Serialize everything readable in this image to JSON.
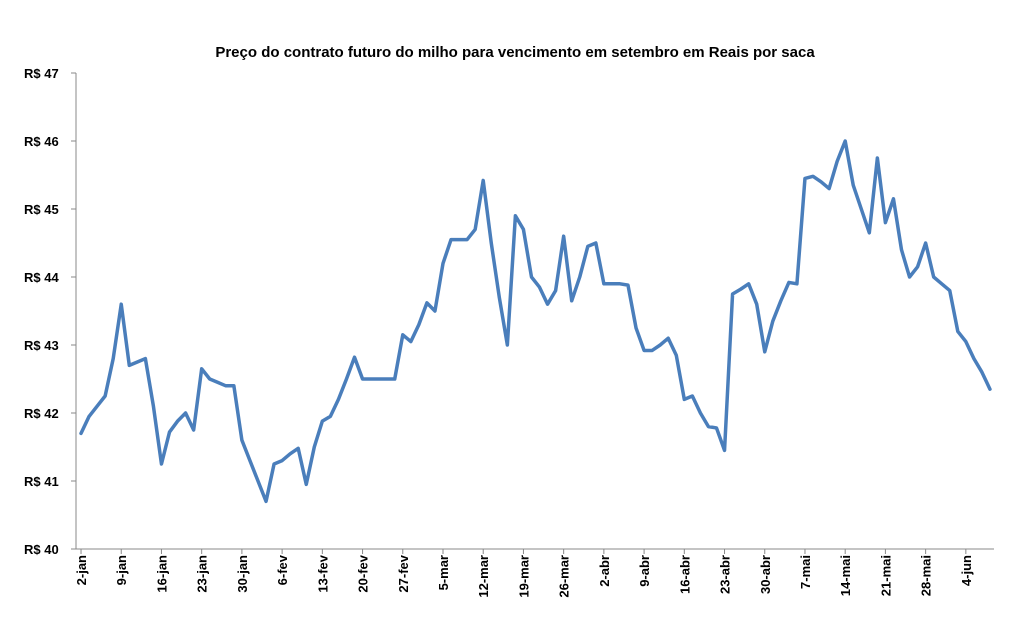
{
  "chart_data": {
    "type": "line",
    "title": "Preço do contrato futuro do milho para vencimento em setembro em Reais por saca",
    "color": "#4a7ebb",
    "grid": false,
    "categories": [
      "2-jan",
      null,
      null,
      null,
      null,
      "9-jan",
      null,
      null,
      null,
      null,
      "16-jan",
      null,
      null,
      null,
      null,
      "23-jan",
      null,
      null,
      null,
      null,
      "30-jan",
      null,
      null,
      null,
      null,
      "6-fev",
      null,
      null,
      null,
      null,
      "13-fev",
      null,
      null,
      null,
      null,
      "20-fev",
      null,
      null,
      null,
      null,
      "27-fev",
      null,
      null,
      null,
      null,
      "5-mar",
      null,
      null,
      null,
      null,
      "12-mar",
      null,
      null,
      null,
      null,
      "19-mar",
      null,
      null,
      null,
      null,
      "26-mar",
      null,
      null,
      null,
      null,
      "2-abr",
      null,
      null,
      null,
      null,
      "9-abr",
      null,
      null,
      null,
      null,
      "16-abr",
      null,
      null,
      null,
      null,
      "23-abr",
      null,
      null,
      null,
      null,
      "30-abr",
      null,
      null,
      null,
      null,
      "7-mai",
      null,
      null,
      null,
      null,
      "14-mai",
      null,
      null,
      null,
      null,
      "21-mai",
      null,
      null,
      null,
      null,
      "28-mai",
      null,
      null,
      null,
      null,
      "4-jun",
      null,
      null,
      null
    ],
    "values": [
      41.7,
      41.95,
      42.1,
      42.25,
      42.8,
      43.6,
      42.7,
      42.75,
      42.8,
      42.1,
      41.25,
      41.72,
      41.88,
      42.0,
      41.75,
      42.65,
      42.5,
      42.45,
      42.4,
      42.4,
      41.6,
      41.3,
      41.0,
      40.7,
      41.25,
      41.3,
      41.4,
      41.48,
      40.95,
      41.5,
      41.88,
      41.95,
      42.2,
      42.5,
      42.82,
      42.5,
      42.5,
      42.5,
      42.5,
      42.5,
      43.15,
      43.05,
      43.3,
      43.62,
      43.5,
      44.2,
      44.55,
      44.55,
      44.55,
      44.7,
      45.42,
      44.5,
      43.7,
      43.0,
      44.9,
      44.7,
      44.0,
      43.85,
      43.6,
      43.8,
      44.6,
      43.65,
      44.0,
      44.45,
      44.5,
      43.9,
      43.9,
      43.9,
      43.88,
      43.25,
      42.92,
      42.92,
      43.0,
      43.1,
      42.85,
      42.2,
      42.25,
      42.0,
      41.8,
      41.78,
      41.45,
      43.75,
      43.82,
      43.9,
      43.6,
      42.9,
      43.35,
      43.65,
      43.92,
      43.9,
      45.45,
      45.48,
      45.4,
      45.3,
      45.7,
      46.0,
      45.35,
      45.0,
      44.65,
      45.75,
      44.8,
      45.15,
      44.4,
      44.0,
      44.15,
      44.5,
      44.0,
      43.9,
      43.8,
      43.2,
      43.05,
      42.8,
      42.6,
      42.35
    ],
    "ylim": [
      40,
      47
    ],
    "yticks": [
      {
        "value": 40,
        "label": "R$ 40"
      },
      {
        "value": 41,
        "label": "R$ 41"
      },
      {
        "value": 42,
        "label": "R$ 42"
      },
      {
        "value": 43,
        "label": "R$ 43"
      },
      {
        "value": 44,
        "label": "R$ 44"
      },
      {
        "value": 45,
        "label": "R$ 45"
      },
      {
        "value": 46,
        "label": "R$ 46"
      },
      {
        "value": 47,
        "label": "R$ 47"
      }
    ]
  }
}
